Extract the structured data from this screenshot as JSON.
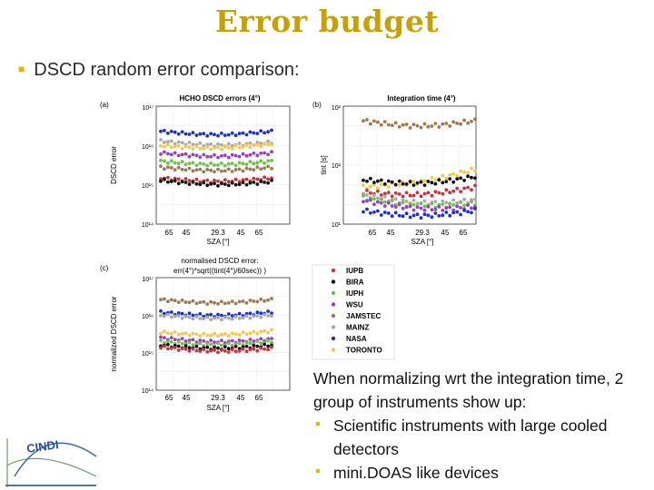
{
  "slide": {
    "title": "Error budget",
    "subtitle": "DSCD random error comparison:"
  },
  "panels": {
    "a": {
      "label": "(a)",
      "title": "HCHO DSCD errors (4°)",
      "ylabel": "DSCD error",
      "xlabel": "SZA [°]",
      "yticks": [
        "10¹⁷",
        "10¹⁶",
        "10¹⁵",
        "10¹⁴"
      ]
    },
    "b": {
      "label": "(b)",
      "title": "Integration time (4°)",
      "ylabel": "tint [s]",
      "xlabel": "SZA [°]",
      "yticks": [
        "10²",
        "10²",
        "10¹"
      ]
    },
    "c": {
      "label": "(c)",
      "title_line1": "normalised DSCD error:",
      "title_line2": "err(4°)*sqrt((tint(4°)/60sec)) )",
      "ylabel": "normalized DSCD error",
      "xlabel": "SZA [°]",
      "yticks": [
        "10¹⁷",
        "10¹⁶",
        "10¹⁵",
        "10¹⁴"
      ]
    },
    "xticks": [
      "65",
      "45",
      "29.3",
      "45",
      "65"
    ]
  },
  "legend": [
    {
      "name": "IUPB",
      "color": "#c8323c"
    },
    {
      "name": "BIRA",
      "color": "#111111"
    },
    {
      "name": "IUPH",
      "color": "#6fc04a"
    },
    {
      "name": "WSU",
      "color": "#9a3fc4"
    },
    {
      "name": "JAMSTEC",
      "color": "#a07850"
    },
    {
      "name": "MAINZ",
      "color": "#a8a8a8"
    },
    {
      "name": "NASA",
      "color": "#1c2fd0"
    },
    {
      "name": "TORONTO",
      "color": "#f0c850"
    }
  ],
  "notes": {
    "intro": "When normalizing wrt the integration time, 2 group of instruments show up:",
    "items": [
      "Scientific instruments with large cooled detectors",
      "mini.DOAS like devices"
    ]
  },
  "logo": {
    "text": "CINDI"
  },
  "chart_data": [
    {
      "type": "scatter",
      "title": "HCHO DSCD errors (4°)",
      "xlabel": "SZA [°]",
      "ylabel": "DSCD error",
      "x_ticks": [
        "65",
        "45",
        "29.3",
        "45",
        "65"
      ],
      "y_scale": "log",
      "ylim": [
        100000000000000.0,
        1e+17
      ],
      "series": [
        {
          "name": "NASA",
          "values_start_end": [
            2.3e+16,
            2.3e+16
          ]
        },
        {
          "name": "MAINZ",
          "values_start_end": [
            1.3e+16,
            1.2e+16
          ]
        },
        {
          "name": "TORONTO",
          "values_start_end": [
            1e+16,
            1.1e+16
          ]
        },
        {
          "name": "WSU",
          "values_start_end": [
            6500000000000000.0,
            6500000000000000.0
          ]
        },
        {
          "name": "IUPH",
          "values_start_end": [
            4000000000000000.0,
            4000000000000000.0
          ]
        },
        {
          "name": "JAMSTEC",
          "values_start_end": [
            2800000000000000.0,
            2800000000000000.0
          ]
        },
        {
          "name": "IUPB",
          "values_start_end": [
            1500000000000000.0,
            1500000000000000.0
          ]
        },
        {
          "name": "BIRA",
          "values_start_end": [
            1300000000000000.0,
            1200000000000000.0
          ]
        }
      ]
    },
    {
      "type": "scatter",
      "title": "Integration time (4°)",
      "xlabel": "SZA [°]",
      "ylabel": "tint [s]",
      "x_ticks": [
        "65",
        "45",
        "29.3",
        "45",
        "65"
      ],
      "y_scale": "log",
      "series": [
        {
          "name": "JAMSTEC",
          "values_start_end": [
            400,
            400
          ]
        },
        {
          "name": "TORONTO",
          "values_start_end": [
            30,
            60
          ]
        },
        {
          "name": "BIRA",
          "values_start_end": [
            40,
            45
          ]
        },
        {
          "name": "IUPB",
          "values_start_end": [
            25,
            30
          ]
        },
        {
          "name": "MAINZ",
          "values_start_end": [
            22,
            18
          ]
        },
        {
          "name": "IUPH",
          "values_start_end": [
            20,
            16
          ]
        },
        {
          "name": "WSU",
          "values_start_end": [
            18,
            14
          ]
        },
        {
          "name": "NASA",
          "values_start_end": [
            12,
            12
          ]
        }
      ]
    },
    {
      "type": "scatter",
      "title": "normalised DSCD error:",
      "xlabel": "SZA [°]",
      "ylabel": "normalized DSCD error",
      "x_ticks": [
        "65",
        "45",
        "29.3",
        "45",
        "65"
      ],
      "y_scale": "log",
      "ylim": [
        100000000000000.0,
        1e+17
      ],
      "series": [
        {
          "name": "JAMSTEC",
          "values_start_end": [
            2.6e+16,
            2.6e+16
          ]
        },
        {
          "name": "NASA",
          "values_start_end": [
            1.2e+16,
            1.2e+16
          ]
        },
        {
          "name": "MAINZ",
          "values_start_end": [
            1e+16,
            1e+16
          ]
        },
        {
          "name": "TORONTO",
          "values_start_end": [
            3500000000000000.0,
            3800000000000000.0
          ]
        },
        {
          "name": "WSU",
          "values_start_end": [
            2500000000000000.0,
            2300000000000000.0
          ]
        },
        {
          "name": "IUPH",
          "values_start_end": [
            2000000000000000.0,
            2000000000000000.0
          ]
        },
        {
          "name": "BIRA",
          "values_start_end": [
            1600000000000000.0,
            1600000000000000.0
          ]
        },
        {
          "name": "IUPB",
          "values_start_end": [
            1400000000000000.0,
            1300000000000000.0
          ]
        }
      ]
    }
  ]
}
